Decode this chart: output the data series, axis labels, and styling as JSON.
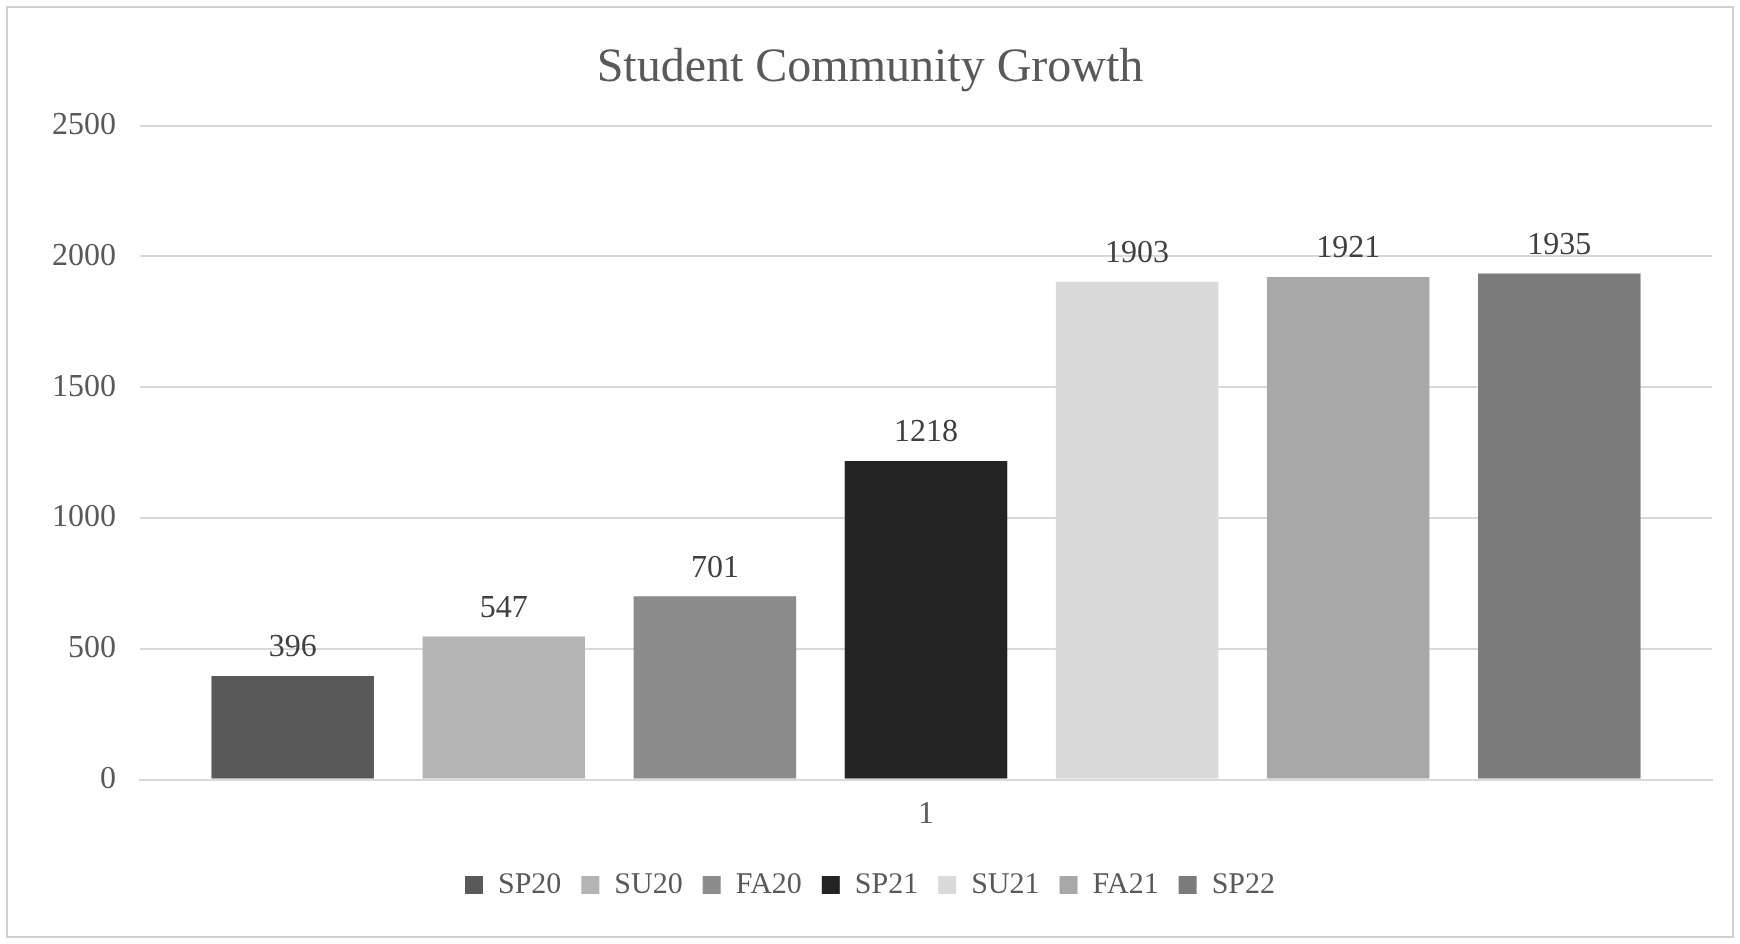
{
  "chart_data": {
    "type": "bar",
    "title": "Student Community Growth",
    "categories": [
      "1"
    ],
    "series": [
      {
        "name": "SP20",
        "color": "#595959",
        "values": [
          396
        ]
      },
      {
        "name": "SU20",
        "color": "#b4b4b4",
        "values": [
          547
        ]
      },
      {
        "name": "FA20",
        "color": "#8c8c8c",
        "values": [
          701
        ]
      },
      {
        "name": "SP21",
        "color": "#242424",
        "values": [
          1218
        ]
      },
      {
        "name": "SU21",
        "color": "#dadada",
        "values": [
          1903
        ]
      },
      {
        "name": "FA21",
        "color": "#a8a8a8",
        "values": [
          1921
        ]
      },
      {
        "name": "SP22",
        "color": "#7b7b7b",
        "values": [
          1935
        ]
      }
    ],
    "ylim": [
      0,
      2500
    ],
    "yticks": [
      0,
      500,
      1000,
      1500,
      2000,
      2500
    ],
    "grid": "y",
    "legend": "bottom",
    "data_labels": true
  }
}
